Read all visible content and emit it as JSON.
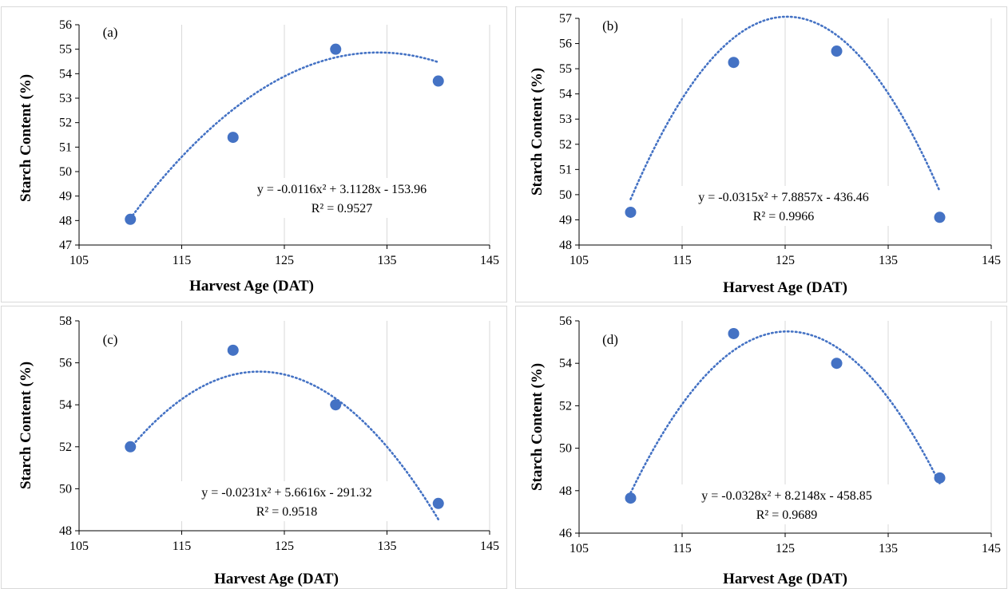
{
  "colors": {
    "marker": "#4472C4",
    "trendline": "#4472C4",
    "grid": "#d9d9d9",
    "axis": "#000000"
  },
  "chart_data": [
    {
      "type": "scatter",
      "panel_label": "(a)",
      "xlabel": "Harvest Age (DAT)",
      "ylabel": "Starch Content (%)",
      "xlim": [
        105,
        145
      ],
      "ylim": [
        47,
        56
      ],
      "xticks": [
        105,
        115,
        125,
        135,
        145
      ],
      "yticks": [
        47,
        48,
        49,
        50,
        51,
        52,
        53,
        54,
        55,
        56
      ],
      "x": [
        110,
        120,
        130,
        140
      ],
      "y": [
        48.05,
        51.4,
        55.0,
        53.7
      ],
      "trendline": {
        "type": "polynomial",
        "coefficients": [
          -0.0116,
          3.1128,
          -153.96
        ],
        "equation": "y = -0.0116x² + 3.1128x - 153.96",
        "r_squared": "R² = 0.9527"
      },
      "grid": true
    },
    {
      "type": "scatter",
      "panel_label": "(b)",
      "xlabel": "Harvest Age (DAT)",
      "ylabel": "Starch Content (%)",
      "xlim": [
        105,
        145
      ],
      "ylim": [
        48,
        57
      ],
      "xticks": [
        105,
        115,
        125,
        135,
        145
      ],
      "yticks": [
        48,
        49,
        50,
        51,
        52,
        53,
        54,
        55,
        56,
        57
      ],
      "x": [
        110,
        120,
        130,
        140
      ],
      "y": [
        49.3,
        55.25,
        55.7,
        49.1
      ],
      "trendline": {
        "type": "polynomial",
        "coefficients": [
          -0.0315,
          7.8857,
          -436.46
        ],
        "equation": "y = -0.0315x² + 7.8857x - 436.46",
        "r_squared": "R² = 0.9966"
      },
      "grid": true
    },
    {
      "type": "scatter",
      "panel_label": "(c)",
      "xlabel": "Harvest Age (DAT)",
      "ylabel": "Starch Content (%)",
      "xlim": [
        105,
        145
      ],
      "ylim": [
        48,
        58
      ],
      "xticks": [
        105,
        115,
        125,
        135,
        145
      ],
      "yticks": [
        48,
        50,
        52,
        54,
        56,
        58
      ],
      "x": [
        110,
        120,
        130,
        140
      ],
      "y": [
        52.0,
        56.6,
        54.0,
        49.3
      ],
      "trendline": {
        "type": "polynomial",
        "coefficients": [
          -0.0231,
          5.6616,
          -291.32
        ],
        "equation": "y = -0.0231x² + 5.6616x - 291.32",
        "r_squared": "R² = 0.9518"
      },
      "grid": true
    },
    {
      "type": "scatter",
      "panel_label": "(d)",
      "xlabel": "Harvest Age (DAT)",
      "ylabel": "Starch Content (%)",
      "xlim": [
        105,
        145
      ],
      "ylim": [
        46,
        56
      ],
      "xticks": [
        105,
        115,
        125,
        135,
        145
      ],
      "yticks": [
        46,
        48,
        50,
        52,
        54,
        56
      ],
      "x": [
        110,
        120,
        130,
        140
      ],
      "y": [
        47.65,
        55.4,
        54.0,
        48.6
      ],
      "trendline": {
        "type": "polynomial",
        "coefficients": [
          -0.0328,
          8.2148,
          -458.85
        ],
        "equation": "y = -0.0328x² + 8.2148x - 458.85",
        "r_squared": "R² = 0.9689"
      },
      "grid": true
    }
  ]
}
